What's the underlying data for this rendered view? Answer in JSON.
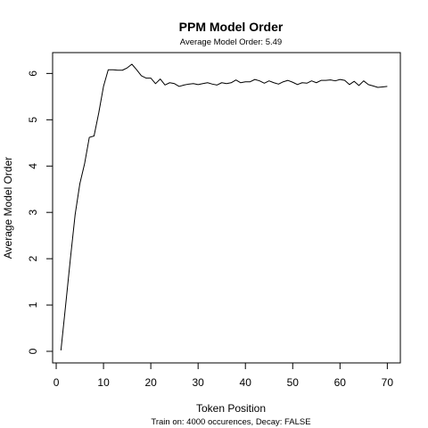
{
  "chart_data": {
    "type": "line",
    "title": "PPM Model Order",
    "subtitle": "Average Model Order: 5.49",
    "xlabel": "Token Position",
    "ylabel": "Average Model Order",
    "caption": "Train on: 4000 occurences, Decay: FALSE",
    "xlim": [
      -0.76,
      72.76
    ],
    "ylim": [
      -0.25,
      6.45
    ],
    "xticks": [
      0,
      10,
      20,
      30,
      40,
      50,
      60,
      70
    ],
    "yticks": [
      0,
      1,
      2,
      3,
      4,
      5,
      6
    ],
    "grid": false,
    "series": [
      {
        "x": [
          1,
          2,
          3,
          4,
          5,
          6,
          7,
          8,
          9,
          10,
          11,
          12,
          13,
          14,
          15,
          16,
          17,
          18,
          19,
          20,
          21,
          22,
          23,
          24,
          25,
          26,
          27,
          28,
          29,
          30,
          31,
          32,
          33,
          34,
          35,
          36,
          37,
          38,
          39,
          40,
          41,
          42,
          43,
          44,
          45,
          46,
          47,
          48,
          49,
          50,
          51,
          52,
          53,
          54,
          55,
          56,
          57,
          58,
          59,
          60,
          61,
          62,
          63,
          64,
          65,
          66,
          67,
          68,
          69,
          70
        ],
        "y": [
          0.02,
          1.0,
          2.0,
          2.95,
          3.62,
          4.05,
          4.62,
          4.65,
          5.15,
          5.72,
          6.08,
          6.08,
          6.07,
          6.07,
          6.12,
          6.2,
          6.08,
          5.95,
          5.9,
          5.9,
          5.78,
          5.88,
          5.75,
          5.8,
          5.78,
          5.72,
          5.75,
          5.77,
          5.78,
          5.76,
          5.78,
          5.8,
          5.77,
          5.75,
          5.8,
          5.78,
          5.8,
          5.86,
          5.8,
          5.82,
          5.82,
          5.87,
          5.84,
          5.79,
          5.84,
          5.8,
          5.77,
          5.82,
          5.85,
          5.81,
          5.76,
          5.8,
          5.79,
          5.84,
          5.8,
          5.85,
          5.85,
          5.86,
          5.84,
          5.87,
          5.85,
          5.76,
          5.83,
          5.74,
          5.84,
          5.76,
          5.73,
          5.7,
          5.71,
          5.72
        ]
      }
    ]
  }
}
